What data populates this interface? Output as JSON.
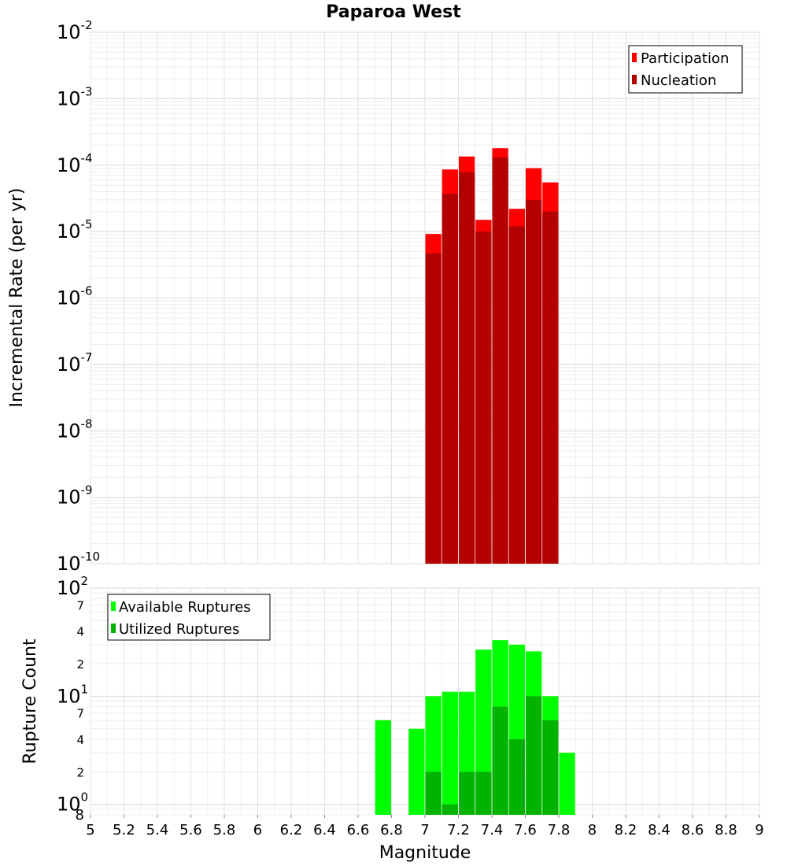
{
  "chart_data": [
    {
      "type": "bar",
      "title": "Paparoa West",
      "xlabel": "Magnitude",
      "ylabel": "Incremental Rate (per yr)",
      "yscale": "log",
      "xlim": [
        5,
        9
      ],
      "ylim": [
        1e-10,
        0.01
      ],
      "y_ticks": [
        {
          "base": "10",
          "exp": "-2",
          "value": 0.01
        },
        {
          "base": "10",
          "exp": "-3",
          "value": 0.001
        },
        {
          "base": "10",
          "exp": "-4",
          "value": 0.0001
        },
        {
          "base": "10",
          "exp": "-5",
          "value": 1e-05
        },
        {
          "base": "10",
          "exp": "-6",
          "value": 1e-06
        },
        {
          "base": "10",
          "exp": "-7",
          "value": 1e-07
        },
        {
          "base": "10",
          "exp": "-8",
          "value": 1e-08
        },
        {
          "base": "10",
          "exp": "-9",
          "value": 1e-09
        },
        {
          "base": "10",
          "exp": "-10",
          "value": 1e-10
        }
      ],
      "bin_width": 0.1,
      "legend": [
        "Participation",
        "Nucleation"
      ],
      "legend_position": "top-right",
      "series": [
        {
          "name": "Participation",
          "color": "#ff0000",
          "x": [
            7.05,
            7.15,
            7.25,
            7.35,
            7.45,
            7.55,
            7.65,
            7.75
          ],
          "values": [
            9.2e-06,
            8.6e-05,
            0.000135,
            1.5e-05,
            0.00018,
            2.2e-05,
            9e-05,
            5.5e-05
          ]
        },
        {
          "name": "Nucleation",
          "color": "#b30000",
          "x": [
            7.05,
            7.15,
            7.25,
            7.35,
            7.45,
            7.55,
            7.65,
            7.75
          ],
          "values": [
            4.7e-06,
            3.7e-05,
            7.8e-05,
            1e-05,
            0.00013,
            1.2e-05,
            3e-05,
            2e-05
          ]
        }
      ]
    },
    {
      "type": "bar",
      "title": "",
      "xlabel": "Magnitude",
      "ylabel": "Rupture Count",
      "yscale": "log",
      "xlim": [
        5,
        9
      ],
      "ylim": [
        0.8,
        100
      ],
      "y_major_ticks": [
        {
          "base": "10",
          "exp": "2",
          "value": 100
        },
        {
          "base": "10",
          "exp": "1",
          "value": 10
        },
        {
          "base": "10",
          "exp": "0",
          "value": 1
        }
      ],
      "y_minor_ticks": [
        {
          "label": "7",
          "value": 70
        },
        {
          "label": "4",
          "value": 40
        },
        {
          "label": "2",
          "value": 20
        },
        {
          "label": "7",
          "value": 7
        },
        {
          "label": "4",
          "value": 4
        },
        {
          "label": "2",
          "value": 2
        },
        {
          "label": "8",
          "value": 0.8
        }
      ],
      "x_ticks": [
        "5",
        "5.2",
        "5.4",
        "5.6",
        "5.8",
        "6",
        "6.2",
        "6.4",
        "6.6",
        "6.8",
        "7",
        "7.2",
        "7.4",
        "7.6",
        "7.8",
        "8",
        "8.2",
        "8.4",
        "8.6",
        "8.8",
        "9"
      ],
      "bin_width": 0.1,
      "legend": [
        "Available Ruptures",
        "Utilized Ruptures"
      ],
      "legend_position": "top-left",
      "series": [
        {
          "name": "Available Ruptures",
          "color": "#00ff00",
          "x": [
            6.75,
            6.95,
            7.05,
            7.15,
            7.25,
            7.35,
            7.45,
            7.55,
            7.65,
            7.75,
            7.85
          ],
          "values": [
            6,
            5,
            10,
            11,
            11,
            27,
            33,
            30,
            26,
            10,
            3
          ]
        },
        {
          "name": "Utilized Ruptures",
          "color": "#00b300",
          "x": [
            7.05,
            7.15,
            7.25,
            7.35,
            7.45,
            7.55,
            7.65,
            7.75
          ],
          "values": [
            2,
            1,
            2,
            2,
            8,
            4,
            10,
            6
          ]
        }
      ]
    }
  ]
}
